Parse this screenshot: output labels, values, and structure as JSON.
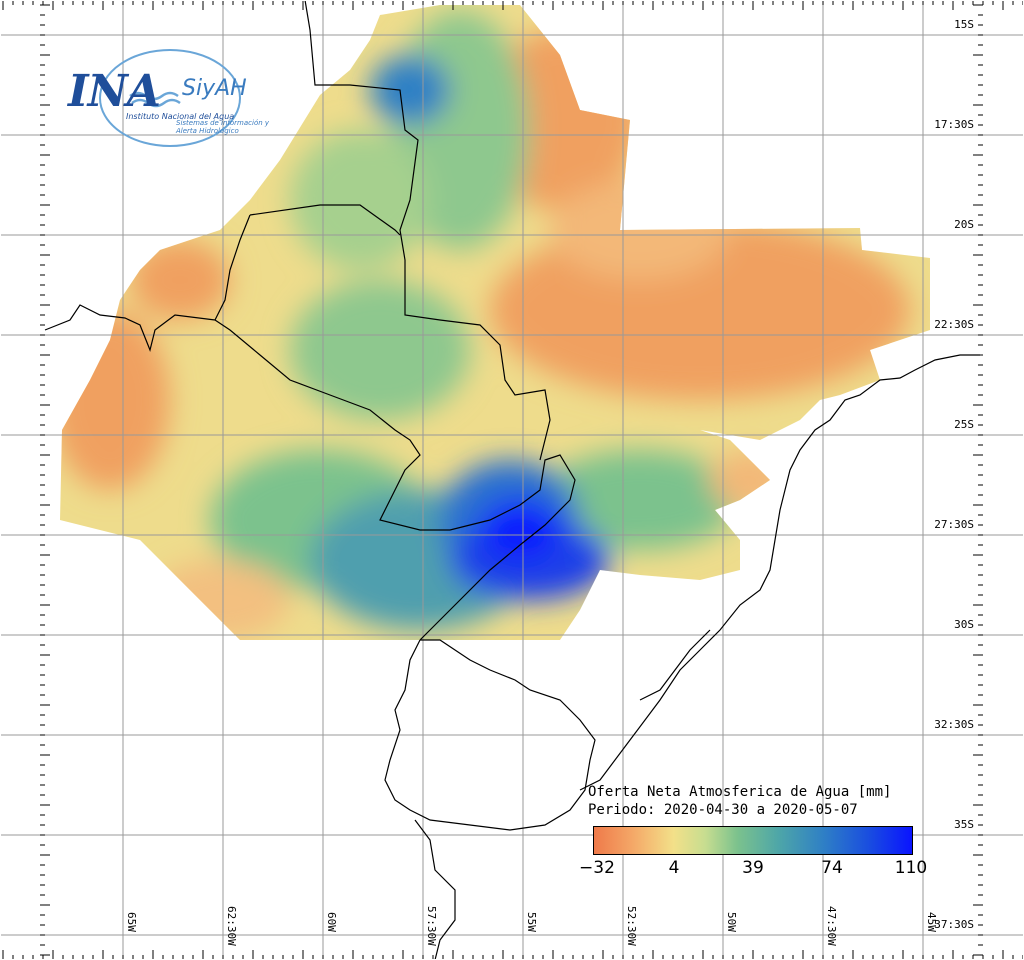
{
  "logo": {
    "brand": "INA",
    "product": "SiyAH",
    "institution": "Instituto Nacional del Agua",
    "system": "Sistemas de información y Alerta Hidrológico"
  },
  "legend": {
    "title_line1": "Oferta Neta Atmosferica de Agua [mm]",
    "title_line2": "Periodo: 2020-04-30 a 2020-05-07",
    "ticks": [
      "−32",
      "4",
      "39",
      "74",
      "110"
    ],
    "colors": [
      "#ef7a4a",
      "#f3e089",
      "#7cc28d",
      "#2f80c5",
      "#0a14ff"
    ]
  },
  "axes": {
    "lat_labels": [
      "15S",
      "17:30S",
      "20S",
      "22:30S",
      "25S",
      "27:30S",
      "30S",
      "32:30S",
      "35S",
      "37:30S"
    ],
    "lon_labels": [
      "65W",
      "62:30W",
      "60W",
      "57:30W",
      "55W",
      "52:30W",
      "50W",
      "47:30W",
      "45W"
    ]
  },
  "map_colors": {
    "dry": "#f0a060",
    "neutral": "#eedc8c",
    "moist": "#8ec88e",
    "wet": "#4f9fae",
    "very_wet": "#2a6fd0",
    "extreme": "#0a1cff",
    "border": "#000000",
    "grid": "#999999"
  }
}
